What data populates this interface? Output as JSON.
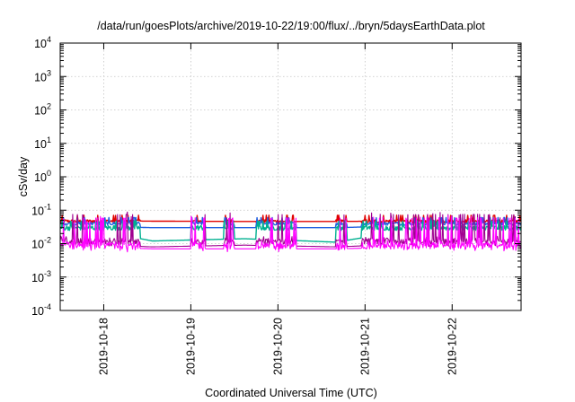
{
  "chart_data": {
    "type": "line",
    "title": "/data/run/goesPlots/archive/2019-10-22/19:00/flux/../bryn/5daysEarthData.plot",
    "xlabel": "Coordinated Universal Time (UTC)",
    "ylabel": "cSv/day",
    "yscale": "log",
    "ylim": [
      0.0001,
      10000
    ],
    "xlim": [
      "2019-10-17T12:00",
      "2019-10-22T19:00"
    ],
    "grid": true,
    "legend": "none",
    "x_ticks": [
      "2019-10-18",
      "2019-10-19",
      "2019-10-20",
      "2019-10-21",
      "2019-10-22"
    ],
    "y_ticks": [
      {
        "value": 0.0001,
        "base": "10",
        "exp": "-4"
      },
      {
        "value": 0.001,
        "base": "10",
        "exp": "-3"
      },
      {
        "value": 0.01,
        "base": "10",
        "exp": "-2"
      },
      {
        "value": 0.1,
        "base": "10",
        "exp": "-1"
      },
      {
        "value": 1,
        "base": "10",
        "exp": "0"
      },
      {
        "value": 10,
        "base": "10",
        "exp": "1"
      },
      {
        "value": 100,
        "base": "10",
        "exp": "2"
      },
      {
        "value": 1000,
        "base": "10",
        "exp": "3"
      },
      {
        "value": 10000,
        "base": "10",
        "exp": "4"
      }
    ],
    "gaps": [
      [
        "2019-10-18T10:00",
        "2019-10-19T00:00"
      ],
      [
        "2019-10-19T04:00",
        "2019-10-19T09:00"
      ],
      [
        "2019-10-19T12:00",
        "2019-10-19T18:00"
      ],
      [
        "2019-10-20T05:00",
        "2019-10-20T16:00"
      ],
      [
        "2019-10-20T19:00",
        "2019-10-20T23:00"
      ]
    ],
    "series": [
      {
        "color": "#e00000",
        "base": 0.047,
        "noise": 0.05,
        "values": [
          0.05,
          0.047,
          0.046,
          0.046,
          0.048,
          0.052
        ]
      },
      {
        "color": "#2060e0",
        "base": 0.04,
        "noise": 0.05,
        "values": [
          0.035,
          0.03,
          0.03,
          0.03,
          0.035,
          0.038
        ]
      },
      {
        "color": "#00b090",
        "base": 0.03,
        "noise": 0.08,
        "values": [
          0.028,
          0.012,
          0.014,
          0.011,
          0.025,
          0.028
        ]
      },
      {
        "color": "#a00090",
        "base": 0.012,
        "noise": 0.1,
        "values": [
          0.01,
          0.008,
          0.009,
          0.008,
          0.01,
          0.011
        ]
      },
      {
        "color": "#ff00ff",
        "base": 0.009,
        "noise": 0.12,
        "values": [
          0.008,
          0.007,
          0.007,
          0.007,
          0.008,
          0.009
        ]
      }
    ]
  }
}
